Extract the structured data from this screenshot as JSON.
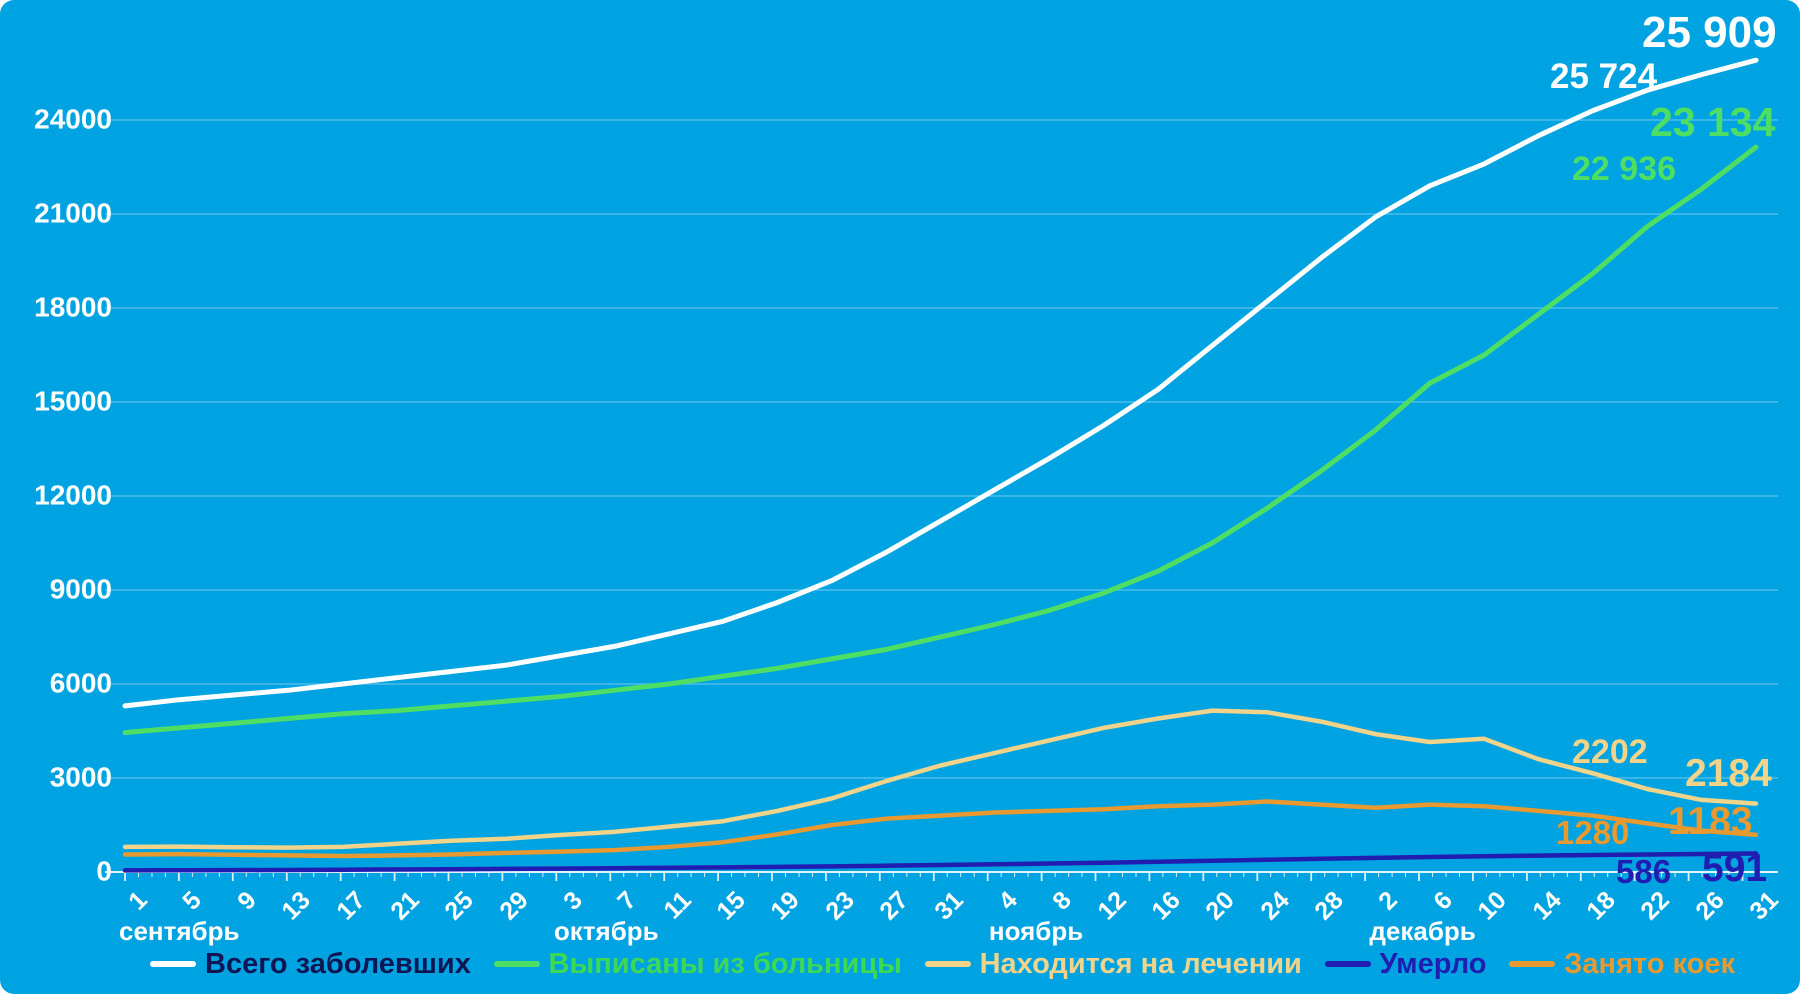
{
  "chart_data": {
    "type": "line",
    "title": "",
    "background_color": "#00A3E2",
    "gridline_color": "rgba(255,255,255,0.30)",
    "axis_color": "rgba(255,255,255,0.85)",
    "text_color": "#FFFFFF",
    "grid": true,
    "legend_position": "bottom",
    "ylim": [
      0,
      26400
    ],
    "yticks": [
      0,
      3000,
      6000,
      9000,
      12000,
      15000,
      18000,
      21000,
      24000
    ],
    "x_tick_labels": [
      "1",
      "5",
      "9",
      "13",
      "17",
      "21",
      "25",
      "29",
      "3",
      "7",
      "11",
      "15",
      "19",
      "23",
      "27",
      "31",
      "4",
      "8",
      "12",
      "16",
      "20",
      "24",
      "28",
      "2",
      "6",
      "10",
      "14",
      "18",
      "22",
      "26",
      "31"
    ],
    "month_labels": [
      {
        "label": "сентябрь",
        "tick_index": 0
      },
      {
        "label": "октябрь",
        "tick_index": 8
      },
      {
        "label": "ноябрь",
        "tick_index": 16
      },
      {
        "label": "декабрь",
        "tick_index": 23
      }
    ],
    "series": [
      {
        "name": "Всего заболевших",
        "color": "#FFFFFF",
        "legend_text_color": "#101653",
        "line_width": 5,
        "values": [
          5300,
          5500,
          5650,
          5800,
          6000,
          6200,
          6400,
          6600,
          6900,
          7200,
          7600,
          8000,
          8600,
          9300,
          10200,
          11200,
          12200,
          13200,
          14250,
          15400,
          16800,
          18200,
          19600,
          20900,
          21900,
          22600,
          23500,
          24300,
          24950,
          25450,
          25909
        ],
        "prev_label": "25 724",
        "final_label": "25 909"
      },
      {
        "name": "Выписаны из больницы",
        "color": "#4DDE63",
        "legend_text_color": "#3ED954",
        "line_width": 5,
        "values": [
          4450,
          4600,
          4750,
          4900,
          5050,
          5150,
          5300,
          5450,
          5600,
          5800,
          6000,
          6250,
          6500,
          6800,
          7100,
          7500,
          7900,
          8350,
          8900,
          9600,
          10500,
          11600,
          12800,
          14100,
          15600,
          16500,
          17800,
          19100,
          20600,
          21800,
          23134
        ],
        "prev_label": "22 936",
        "final_label": "23 134"
      },
      {
        "name": "Находится на лечении",
        "color": "#F1D489",
        "legend_text_color": "#F1D489",
        "line_width": 4.5,
        "values": [
          800,
          810,
          790,
          780,
          800,
          900,
          1000,
          1060,
          1180,
          1280,
          1450,
          1620,
          1950,
          2350,
          2900,
          3400,
          3800,
          4200,
          4600,
          4900,
          5150,
          5100,
          4800,
          4400,
          4150,
          4250,
          3600,
          3150,
          2650,
          2300,
          2184
        ],
        "prev_label": "2202",
        "final_label": "2184"
      },
      {
        "name": "Умерло",
        "color": "#201DB0",
        "legend_text_color": "#201DB0",
        "line_width": 4.5,
        "values": [
          50,
          55,
          60,
          65,
          72,
          80,
          90,
          100,
          110,
          122,
          135,
          148,
          162,
          180,
          200,
          222,
          245,
          270,
          298,
          328,
          358,
          390,
          420,
          450,
          478,
          502,
          522,
          542,
          560,
          576,
          591
        ],
        "prev_label": "586",
        "final_label": "591"
      },
      {
        "name": "Занято коек",
        "color": "#E8992F",
        "legend_text_color": "#E8992F",
        "line_width": 4.5,
        "values": [
          560,
          570,
          550,
          530,
          510,
          530,
          560,
          610,
          650,
          700,
          800,
          950,
          1200,
          1500,
          1700,
          1800,
          1900,
          1950,
          2000,
          2100,
          2150,
          2250,
          2150,
          2050,
          2150,
          2100,
          1950,
          1800,
          1550,
          1320,
          1183
        ],
        "prev_label": "1280",
        "final_label": "1183"
      }
    ]
  }
}
